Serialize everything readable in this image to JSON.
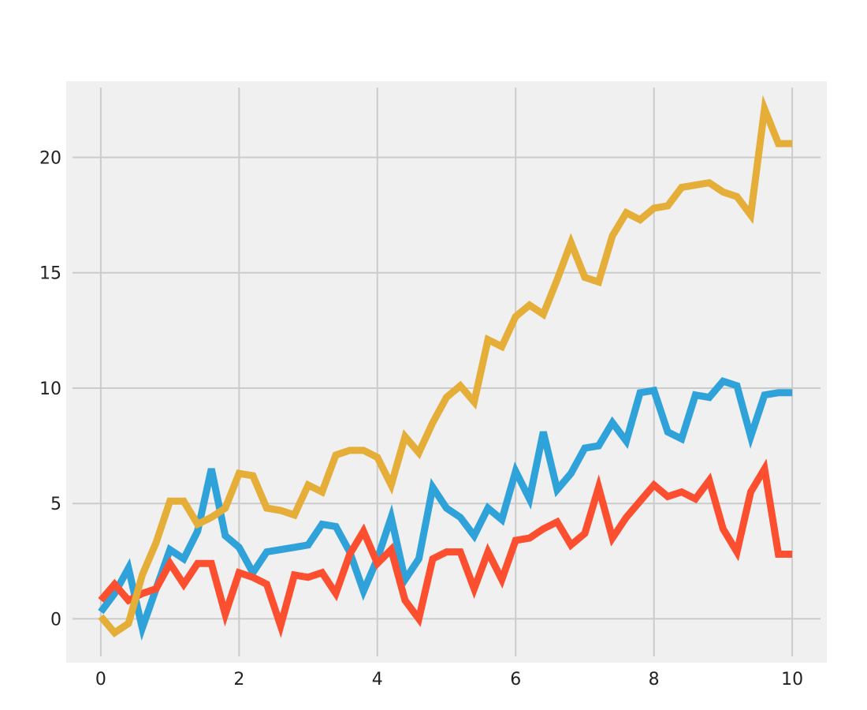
{
  "chart_data": {
    "type": "line",
    "title": "",
    "xlabel": "",
    "ylabel": "",
    "xlim": [
      -0.5,
      10.5
    ],
    "ylim": [
      -1.9,
      23.3
    ],
    "xticks": [
      0,
      2,
      4,
      6,
      8,
      10
    ],
    "yticks": [
      0,
      5,
      10,
      15,
      20
    ],
    "grid": true,
    "background": "#f0f0f0",
    "x": [
      0.0,
      0.2,
      0.4,
      0.6,
      0.8,
      1.0,
      1.2,
      1.4,
      1.6,
      1.8,
      2.0,
      2.2,
      2.4,
      2.6,
      2.8,
      3.0,
      3.2,
      3.4,
      3.6,
      3.8,
      4.0,
      4.2,
      4.4,
      4.6,
      4.8,
      5.0,
      5.2,
      5.4,
      5.6,
      5.8,
      6.0,
      6.2,
      6.4,
      6.6,
      6.8,
      7.0,
      7.2,
      7.4,
      7.6,
      7.8,
      8.0,
      8.2,
      8.4,
      8.6,
      8.8,
      9.0,
      9.2,
      9.4,
      9.6,
      9.8,
      10.0
    ],
    "series": [
      {
        "color": "#30a2da",
        "values": [
          0.3,
          1.1,
          2.2,
          -0.4,
          1.3,
          3.0,
          2.6,
          3.8,
          6.5,
          3.6,
          3.1,
          2.0,
          2.9,
          3.0,
          3.1,
          3.2,
          4.1,
          4.0,
          2.9,
          1.2,
          2.6,
          4.4,
          1.7,
          2.6,
          5.7,
          4.8,
          4.4,
          3.6,
          4.8,
          4.3,
          6.4,
          5.2,
          8.1,
          5.6,
          6.3,
          7.4,
          7.5,
          8.5,
          7.7,
          9.8,
          9.9,
          8.1,
          7.8,
          9.7,
          9.6,
          10.3,
          10.1,
          7.9,
          9.7,
          9.8,
          9.8
        ]
      },
      {
        "color": "#fc4f30",
        "values": [
          0.8,
          1.5,
          0.8,
          1.1,
          1.3,
          2.4,
          1.5,
          2.4,
          2.4,
          0.2,
          2.0,
          1.8,
          1.5,
          -0.3,
          1.9,
          1.8,
          2.0,
          1.1,
          2.8,
          3.8,
          2.4,
          3.0,
          0.8,
          0.0,
          2.6,
          2.9,
          2.9,
          1.3,
          2.9,
          1.7,
          3.4,
          3.5,
          3.9,
          4.2,
          3.2,
          3.7,
          5.7,
          3.5,
          4.4,
          5.1,
          5.8,
          5.3,
          5.5,
          5.2,
          6.0,
          3.9,
          2.9,
          5.5,
          6.5,
          2.8,
          2.8
        ]
      },
      {
        "color": "#e5ae38",
        "values": [
          0.1,
          -0.6,
          -0.2,
          1.9,
          3.3,
          5.1,
          5.1,
          4.1,
          4.4,
          4.8,
          6.3,
          6.2,
          4.8,
          4.7,
          4.5,
          5.8,
          5.5,
          7.1,
          7.3,
          7.3,
          7.0,
          5.8,
          7.9,
          7.2,
          8.5,
          9.6,
          10.1,
          9.4,
          12.1,
          11.8,
          13.1,
          13.6,
          13.2,
          14.7,
          16.3,
          14.8,
          14.6,
          16.6,
          17.6,
          17.3,
          17.8,
          17.9,
          18.7,
          18.8,
          18.9,
          18.5,
          18.3,
          17.5,
          22.1,
          20.6,
          20.6
        ]
      }
    ]
  }
}
